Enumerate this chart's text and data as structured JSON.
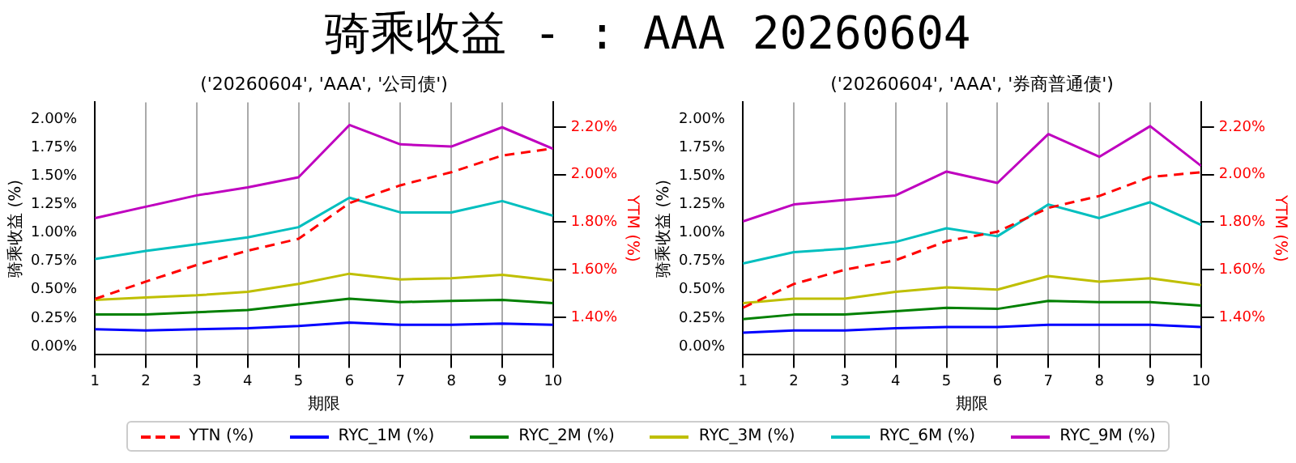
{
  "chart_data": [
    {
      "type": "line",
      "title": "骑乘收益 - : AAA 20260604",
      "subtitle": "('20260604', 'AAA', '公司债')",
      "xlabel": "期限",
      "ylabel": "骑乘收益 (%)",
      "y2label": "YTM (%)",
      "x": [
        1,
        2,
        3,
        4,
        5,
        6,
        7,
        8,
        9,
        10
      ],
      "xlim": [
        1,
        10
      ],
      "xticks": [
        1,
        2,
        3,
        4,
        5,
        6,
        7,
        8,
        9,
        10
      ],
      "ylim": [
        -0.075,
        2.15
      ],
      "yticks": [
        {
          "value": 0,
          "label": "0.00%"
        },
        {
          "value": 0.25,
          "label": "0.25%"
        },
        {
          "value": 0.5,
          "label": "0.50%"
        },
        {
          "value": 0.75,
          "label": "0.75%"
        },
        {
          "value": 1,
          "label": "1.00%"
        },
        {
          "value": 1.25,
          "label": "1.25%"
        },
        {
          "value": 1.5,
          "label": "1.50%"
        },
        {
          "value": 1.75,
          "label": "1.75%"
        },
        {
          "value": 2,
          "label": "2.00%"
        }
      ],
      "y2lim": [
        1.242,
        2.304
      ],
      "y2ticks": [
        {
          "value": 1.4,
          "label": "1.40%"
        },
        {
          "value": 1.6,
          "label": "1.60%"
        },
        {
          "value": 1.8,
          "label": "1.80%"
        },
        {
          "value": 2,
          "label": "2.00%"
        },
        {
          "value": 2.2,
          "label": "2.20%"
        }
      ],
      "grid": "x",
      "legend": "bottom",
      "marker": "none",
      "series": [
        {
          "name": "YTN (%)",
          "color": "#ff0000",
          "axis": "y2",
          "line_style": "dashed",
          "values": [
            1.477,
            1.55,
            1.62,
            1.68,
            1.73,
            1.88,
            1.955,
            2.01,
            2.08,
            2.11
          ]
        },
        {
          "name": "RYC_1M (%)",
          "color": "#0000ff",
          "values": [
            0.15,
            0.14,
            0.15,
            0.16,
            0.18,
            0.21,
            0.19,
            0.19,
            0.2,
            0.19
          ]
        },
        {
          "name": "RYC_2M (%)",
          "color": "#008000",
          "values": [
            0.28,
            0.28,
            0.3,
            0.32,
            0.37,
            0.42,
            0.39,
            0.4,
            0.41,
            0.38
          ]
        },
        {
          "name": "RYC_3M (%)",
          "color": "#bfbf00",
          "values": [
            0.41,
            0.43,
            0.45,
            0.48,
            0.55,
            0.64,
            0.59,
            0.6,
            0.63,
            0.58
          ]
        },
        {
          "name": "RYC_6M (%)",
          "color": "#00bfbf",
          "values": [
            0.77,
            0.84,
            0.9,
            0.96,
            1.05,
            1.31,
            1.18,
            1.18,
            1.28,
            1.15
          ]
        },
        {
          "name": "RYC_9M (%)",
          "color": "#bf00bf",
          "values": [
            1.13,
            1.23,
            1.33,
            1.4,
            1.49,
            1.95,
            1.78,
            1.76,
            1.93,
            1.74
          ]
        }
      ]
    },
    {
      "type": "line",
      "subtitle": "('20260604', 'AAA', '券商普通债')",
      "xlabel": "期限",
      "ylabel": "骑乘收益 (%)",
      "y2label": "YTM (%)",
      "x": [
        1,
        2,
        3,
        4,
        5,
        6,
        7,
        8,
        9,
        10
      ],
      "xlim": [
        1,
        10
      ],
      "xticks": [
        1,
        2,
        3,
        4,
        5,
        6,
        7,
        8,
        9,
        10
      ],
      "ylim": [
        -0.075,
        2.15
      ],
      "yticks": [
        {
          "value": 0,
          "label": "0.00%"
        },
        {
          "value": 0.25,
          "label": "0.25%"
        },
        {
          "value": 0.5,
          "label": "0.50%"
        },
        {
          "value": 0.75,
          "label": "0.75%"
        },
        {
          "value": 1,
          "label": "1.00%"
        },
        {
          "value": 1.25,
          "label": "1.25%"
        },
        {
          "value": 1.5,
          "label": "1.50%"
        },
        {
          "value": 1.75,
          "label": "1.75%"
        },
        {
          "value": 2,
          "label": "2.00%"
        }
      ],
      "y2lim": [
        1.242,
        2.304
      ],
      "y2ticks": [
        {
          "value": 1.4,
          "label": "1.40%"
        },
        {
          "value": 1.6,
          "label": "1.60%"
        },
        {
          "value": 1.8,
          "label": "1.80%"
        },
        {
          "value": 2,
          "label": "2.00%"
        },
        {
          "value": 2.2,
          "label": "2.20%"
        }
      ],
      "grid": "x",
      "marker": "none",
      "series": [
        {
          "color": "#ff0000",
          "axis": "y2",
          "line_style": "dashed",
          "values": [
            1.44,
            1.54,
            1.6,
            1.64,
            1.72,
            1.76,
            1.86,
            1.91,
            1.99,
            2.01
          ]
        },
        {
          "color": "#0000ff",
          "values": [
            0.12,
            0.14,
            0.14,
            0.16,
            0.17,
            0.17,
            0.19,
            0.19,
            0.19,
            0.17
          ]
        },
        {
          "color": "#008000",
          "values": [
            0.24,
            0.28,
            0.28,
            0.31,
            0.34,
            0.33,
            0.4,
            0.39,
            0.39,
            0.36
          ]
        },
        {
          "color": "#bfbf00",
          "values": [
            0.38,
            0.42,
            0.42,
            0.48,
            0.52,
            0.5,
            0.62,
            0.57,
            0.6,
            0.54
          ]
        },
        {
          "color": "#00bfbf",
          "values": [
            0.73,
            0.83,
            0.86,
            0.92,
            1.04,
            0.97,
            1.25,
            1.13,
            1.27,
            1.07
          ]
        },
        {
          "color": "#bf00bf",
          "values": [
            1.1,
            1.25,
            1.29,
            1.33,
            1.54,
            1.44,
            1.87,
            1.67,
            1.94,
            1.59
          ]
        }
      ]
    }
  ]
}
